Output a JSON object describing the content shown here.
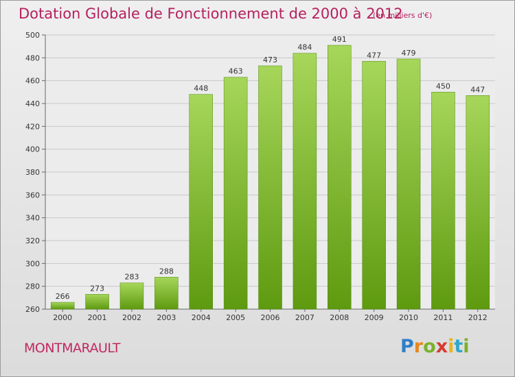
{
  "title": "Dotation Globale de Fonctionnement de 2000 à 2012",
  "subtitle": "(en milliers d'€)",
  "commune": "MONTMARAULT",
  "logo": {
    "letters": [
      "P",
      "r",
      "o",
      "x",
      "i",
      "t",
      "i"
    ],
    "colors": [
      "#2f7fc9",
      "#e8871c",
      "#7ab22a",
      "#d63a2f",
      "#e8b51c",
      "#2fa8c9",
      "#7ab22a"
    ]
  },
  "colors": {
    "title": "#b5205e",
    "bar_light": "#a6d65a",
    "bar_dark": "#5e9a10",
    "grid": "#c8c8c8"
  },
  "chart_data": {
    "type": "bar",
    "title": "Dotation Globale de Fonctionnement de 2000 à 2012",
    "subtitle": "(en milliers d'€)",
    "categories": [
      "2000",
      "2001",
      "2002",
      "2003",
      "2004",
      "2005",
      "2006",
      "2007",
      "2008",
      "2009",
      "2010",
      "2011",
      "2012"
    ],
    "values": [
      266,
      273,
      283,
      288,
      448,
      463,
      473,
      484,
      491,
      477,
      479,
      450,
      447
    ],
    "ylim": [
      260,
      500
    ],
    "yticks": [
      260,
      280,
      300,
      320,
      340,
      360,
      380,
      400,
      420,
      440,
      460,
      480,
      500
    ],
    "grid": true,
    "xlabel": "",
    "ylabel": ""
  }
}
